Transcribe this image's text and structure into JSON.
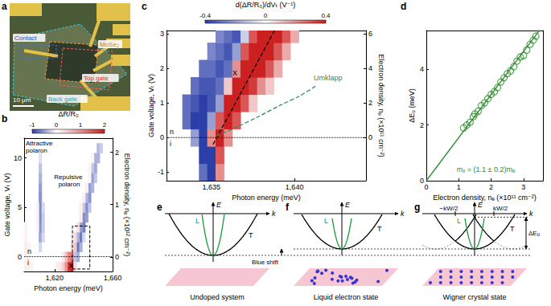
{
  "chart_data": [
    {
      "panel": "b",
      "type": "heatmap",
      "grid": false,
      "x_label": "Photon energy (meV)",
      "y_label": "Gate voltage, Vₜ (V)",
      "y2_label": "Electron density, nₑ (×10¹² cm⁻²)",
      "xlim": [
        1599,
        1660
      ],
      "xticks": [
        {
          "value": 1620,
          "label": "1,620"
        },
        {
          "value": 1660,
          "label": "1,660"
        }
      ],
      "ylim": [
        -1.5,
        12
      ],
      "yticks": [
        0,
        5,
        10
      ],
      "y2lim": [
        -0.28,
        2.27
      ],
      "y2ticks": [
        0,
        1,
        2
      ],
      "colorbar": {
        "label": "ΔR/R₀",
        "range": [
          -1,
          2
        ],
        "ticks": [
          -1,
          0,
          1,
          2
        ]
      },
      "doping_boundary": 0,
      "annotations": [
        "Attractive polaron",
        "Repulsive polaron",
        "X",
        "n",
        "i"
      ],
      "cells": [
        [
          1600,
          -1,
          0.15
        ],
        [
          1602,
          -1,
          0.15
        ],
        [
          1604,
          -1,
          0.12
        ],
        [
          1600,
          0,
          0.15
        ],
        [
          1602,
          0,
          0.12
        ],
        [
          1600,
          1,
          0.15
        ],
        [
          1602,
          1,
          0.12
        ],
        [
          1600,
          2,
          0.12
        ],
        [
          1600,
          3,
          0.1
        ],
        [
          1622,
          -1,
          0.15
        ],
        [
          1624,
          -1,
          0.2
        ],
        [
          1626,
          -1,
          0.4
        ],
        [
          1628,
          -1,
          1.0
        ],
        [
          1630,
          -1,
          1.8
        ],
        [
          1632,
          -1,
          2.0
        ],
        [
          1634,
          -1,
          0.3
        ],
        [
          1626,
          0,
          0.2
        ],
        [
          1628,
          0,
          0.6
        ],
        [
          1630,
          0,
          1.1
        ],
        [
          1632,
          0,
          1.2
        ],
        [
          1634,
          0,
          -0.3
        ],
        [
          1636,
          0,
          -0.4
        ],
        [
          1610,
          1,
          -0.2
        ],
        [
          1610,
          2,
          -0.45
        ],
        [
          1610,
          3,
          -0.55
        ],
        [
          1610,
          4,
          -0.6
        ],
        [
          1610,
          5,
          -0.6
        ],
        [
          1610,
          6,
          -0.55
        ],
        [
          1610,
          7,
          -0.5
        ],
        [
          1610,
          8,
          -0.4
        ],
        [
          1610,
          9,
          -0.3
        ],
        [
          1610,
          10,
          -0.15
        ],
        [
          1612,
          2,
          -0.2
        ],
        [
          1612,
          3,
          -0.25
        ],
        [
          1612,
          4,
          -0.25
        ],
        [
          1612,
          5,
          -0.2
        ],
        [
          1608,
          3,
          0.1
        ],
        [
          1608,
          4,
          0.1
        ],
        [
          1608,
          5,
          0.1
        ],
        [
          1636,
          1,
          -0.7
        ],
        [
          1638,
          1,
          -0.4
        ],
        [
          1634,
          1,
          0.5
        ],
        [
          1632,
          1,
          0.3
        ],
        [
          1638,
          2,
          -0.7
        ],
        [
          1636,
          2,
          -0.4
        ],
        [
          1640,
          2,
          -0.2
        ],
        [
          1634,
          2,
          0.3
        ],
        [
          1640,
          3,
          -0.65
        ],
        [
          1638,
          3,
          -0.5
        ],
        [
          1636,
          3,
          0.25
        ],
        [
          1640,
          4,
          -0.6
        ],
        [
          1642,
          4,
          -0.5
        ],
        [
          1638,
          4,
          0.2
        ],
        [
          1642,
          5,
          -0.6
        ],
        [
          1640,
          5,
          -0.3
        ],
        [
          1644,
          5,
          -0.3
        ],
        [
          1638,
          5,
          0.15
        ],
        [
          1644,
          6,
          -0.55
        ],
        [
          1642,
          6,
          -0.4
        ],
        [
          1640,
          6,
          0.15
        ],
        [
          1644,
          7,
          -0.5
        ],
        [
          1646,
          7,
          -0.4
        ],
        [
          1642,
          7,
          0.15
        ],
        [
          1646,
          8,
          -0.5
        ],
        [
          1648,
          8,
          -0.3
        ],
        [
          1644,
          8,
          0.1
        ],
        [
          1648,
          9,
          -0.45
        ],
        [
          1646,
          9,
          -0.3
        ],
        [
          1644,
          9,
          0.1
        ],
        [
          1648,
          10,
          -0.4
        ],
        [
          1650,
          10,
          -0.4
        ],
        [
          1646,
          10,
          0.1
        ],
        [
          1650,
          11,
          -0.35
        ],
        [
          1652,
          11,
          -0.25
        ]
      ]
    },
    {
      "panel": "c",
      "type": "heatmap",
      "grid": false,
      "x_label": "Photon energy (meV)",
      "y_label": "Gate voltage, Vₜ (V)",
      "y2_label": "Electron density, nₑ (×10¹¹ cm⁻²)",
      "xlim": [
        1632.3,
        1644.3
      ],
      "xticks": [
        {
          "value": 1635,
          "label": "1,635"
        },
        {
          "value": 1640,
          "label": "1,640"
        }
      ],
      "ylim": [
        -1.25,
        3.1
      ],
      "yticks": [
        -1,
        0,
        1,
        2,
        3
      ],
      "y2lim": [
        -2.5,
        6.2
      ],
      "y2ticks": [
        0,
        2,
        4,
        6
      ],
      "colorbar": {
        "label": "d(ΔR/R₀)/dVₜ (V⁻¹)",
        "range": [
          -0.4,
          0.4
        ],
        "ticks": [
          -0.4,
          0,
          0.4
        ]
      },
      "doping_boundary": 0,
      "annotations": [
        "n",
        "i"
      ],
      "lines": [
        {
          "label": "X",
          "color": "#000000",
          "line_style": "dashed",
          "x": [
            1635.1,
            1638.8
          ],
          "values": [
            -0.2,
            3.1
          ]
        },
        {
          "label": "Umklapp",
          "color": "#2e8b57",
          "line_style": "dashed",
          "x": [
            1635.3,
            1636.5,
            1637.8,
            1639.2,
            1640.3,
            1641.3
          ],
          "values": [
            0.05,
            0.3,
            0.6,
            0.95,
            1.2,
            1.5
          ]
        }
      ],
      "cells": [
        [
          1634.5,
          -1,
          -0.3
        ],
        [
          1635,
          -1,
          -0.5
        ],
        [
          1635.5,
          -1,
          0.2
        ],
        [
          1634.5,
          -0.5,
          -0.4
        ],
        [
          1635,
          -0.5,
          -0.6
        ],
        [
          1635.5,
          -0.5,
          0.3
        ],
        [
          1634,
          0,
          -0.2
        ],
        [
          1634.5,
          0,
          -0.4
        ],
        [
          1635,
          0,
          0.2
        ],
        [
          1635.5,
          0,
          0.45
        ],
        [
          1636,
          0,
          0.2
        ],
        [
          1633.5,
          0.5,
          -0.3
        ],
        [
          1634,
          0.5,
          -0.4
        ],
        [
          1634.5,
          0.5,
          -0.4
        ],
        [
          1635,
          0.5,
          -0.2
        ],
        [
          1635.5,
          0.5,
          0.3
        ],
        [
          1636,
          0.5,
          0.5
        ],
        [
          1636.5,
          0.5,
          0.3
        ],
        [
          1633.5,
          1,
          -0.3
        ],
        [
          1634,
          1,
          -0.35
        ],
        [
          1634.5,
          1,
          -0.4
        ],
        [
          1635,
          1,
          -0.35
        ],
        [
          1635.5,
          1,
          -0.2
        ],
        [
          1636,
          1,
          0.4
        ],
        [
          1636.5,
          1,
          0.5
        ],
        [
          1637,
          1,
          0.3
        ],
        [
          1637.5,
          1,
          0.1
        ],
        [
          1634,
          1.5,
          -0.3
        ],
        [
          1634.5,
          1.5,
          -0.35
        ],
        [
          1635,
          1.5,
          -0.35
        ],
        [
          1635.5,
          1.5,
          -0.3
        ],
        [
          1636,
          1.5,
          0.1
        ],
        [
          1636.5,
          1.5,
          0.45
        ],
        [
          1637,
          1.5,
          0.5
        ],
        [
          1637.5,
          1.5,
          0.35
        ],
        [
          1638,
          1.5,
          0.2
        ],
        [
          1638.5,
          1.5,
          0.1
        ],
        [
          1634.5,
          2,
          -0.3
        ],
        [
          1635,
          2,
          -0.3
        ],
        [
          1635.5,
          2,
          -0.35
        ],
        [
          1636,
          2,
          -0.3
        ],
        [
          1636.5,
          2,
          0.2
        ],
        [
          1637,
          2,
          0.45
        ],
        [
          1637.5,
          2,
          0.5
        ],
        [
          1638,
          2,
          0.4
        ],
        [
          1638.5,
          2,
          0.3
        ],
        [
          1639,
          2,
          0.15
        ],
        [
          1635,
          2.5,
          -0.25
        ],
        [
          1635.5,
          2.5,
          -0.3
        ],
        [
          1636,
          2.5,
          -0.35
        ],
        [
          1636.5,
          2.5,
          -0.2
        ],
        [
          1637,
          2.5,
          0.3
        ],
        [
          1637.5,
          2.5,
          0.45
        ],
        [
          1638,
          2.5,
          0.5
        ],
        [
          1638.5,
          2.5,
          0.4
        ],
        [
          1639,
          2.5,
          0.3
        ],
        [
          1639.5,
          2.5,
          0.15
        ],
        [
          1635.5,
          3,
          -0.25
        ],
        [
          1636,
          3,
          -0.3
        ],
        [
          1636.5,
          3,
          -0.35
        ],
        [
          1637,
          3,
          -0.1
        ],
        [
          1637.5,
          3,
          0.3
        ],
        [
          1638,
          3,
          0.45
        ],
        [
          1638.5,
          3,
          0.5
        ],
        [
          1639,
          3,
          0.4
        ],
        [
          1639.5,
          3,
          0.3
        ],
        [
          1640,
          3,
          0.15
        ]
      ]
    },
    {
      "panel": "d",
      "type": "scatter",
      "grid": false,
      "x_label": "Electron density, nₑ (×10¹¹ cm⁻²)",
      "y_label": "ΔEᵤ (meV)",
      "xlim": [
        0,
        3.6
      ],
      "xticks": [
        0,
        1,
        2,
        3
      ],
      "ylim": [
        0,
        5.4
      ],
      "yticks": [
        0,
        2,
        4
      ],
      "color": "#2e8b2e",
      "marker": "open_circle",
      "x": [
        1.15,
        1.25,
        1.35,
        1.45,
        1.5,
        1.6,
        1.7,
        1.8,
        1.9,
        2.0,
        2.1,
        2.2,
        2.3,
        2.4,
        2.5,
        2.6,
        2.7,
        2.8,
        2.9,
        3.0,
        3.1,
        3.2,
        3.3,
        3.38
      ],
      "values": [
        1.9,
        2.0,
        2.1,
        2.3,
        2.4,
        2.5,
        2.7,
        2.8,
        2.95,
        3.1,
        3.2,
        3.35,
        3.55,
        3.7,
        3.85,
        3.95,
        4.1,
        4.3,
        4.45,
        4.5,
        4.7,
        4.9,
        5.05,
        5.2
      ],
      "fit": {
        "x": [
          0,
          3.5
        ],
        "values": [
          0,
          5.42
        ]
      },
      "annotations": [
        "mₓ = (1.1 ± 0.2)mₑ"
      ]
    }
  ],
  "figure": {
    "a": {
      "panel": "a",
      "labels": [
        "Contact",
        "MoSe₂",
        "Top gate",
        "Back gate"
      ],
      "scale_bar": "10 μm"
    },
    "schematics": [
      {
        "panel": "e",
        "axes": [
          "E",
          "k"
        ],
        "branches": [
          "L",
          "T"
        ],
        "caption": "Undoped system"
      },
      {
        "panel": "f",
        "axes": [
          "E",
          "k"
        ],
        "branches": [
          "L",
          "T"
        ],
        "caption": "Liquid electron state"
      },
      {
        "panel": "g",
        "axes": [
          "E",
          "k"
        ],
        "branches": [
          "L",
          "T"
        ],
        "caption": "Wigner crystal state",
        "k_marks": [
          "−kW/2",
          "kW/2"
        ],
        "gap_label": "ΔEᵤ"
      }
    ],
    "shift_label": "Blue shift"
  }
}
